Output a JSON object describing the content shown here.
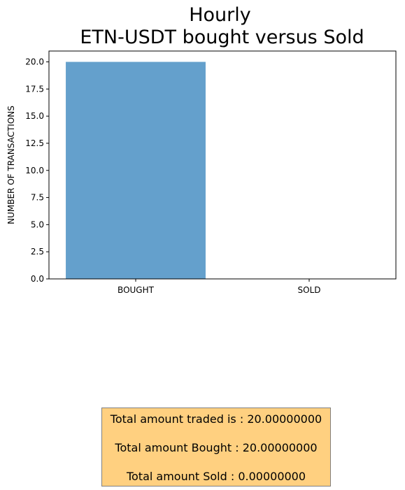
{
  "chart_data": {
    "type": "bar",
    "title": "Hourly",
    "subtitle": "ETN-USDT bought versus Sold",
    "xlabel": "",
    "ylabel": "NUMBER OF TRANSACTIONS",
    "categories": [
      "BOUGHT",
      "SOLD"
    ],
    "values": [
      20,
      0
    ],
    "ylim": [
      0,
      21
    ],
    "yticks": [
      "0.0",
      "2.5",
      "5.0",
      "7.5",
      "10.0",
      "12.5",
      "15.0",
      "17.5",
      "20.0"
    ],
    "bar_color": "#64a0cc",
    "grid": false
  },
  "summary": {
    "traded": "Total amount traded is : 20.00000000",
    "bought": "Total amount Bought : 20.00000000",
    "sold": "Total amount Sold : 0.00000000"
  }
}
